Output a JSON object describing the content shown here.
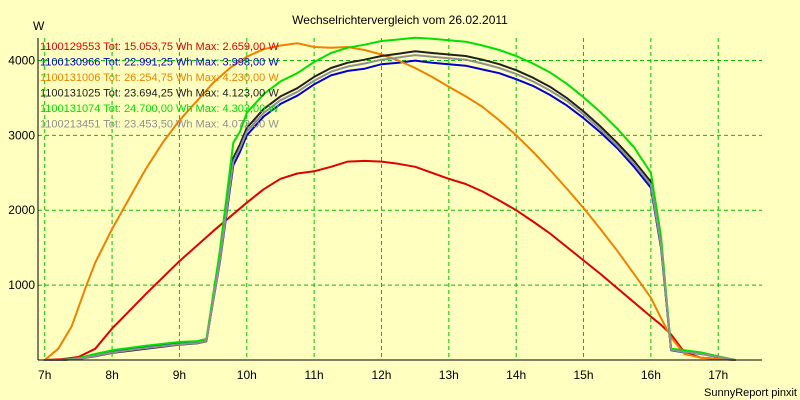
{
  "chart_data": {
    "type": "line",
    "title": "Wechselrichtervergleich vom 26.02.2011",
    "ylabel": "W",
    "xlabel": "",
    "footer": "SunnyReport pinxit",
    "xlim": [
      6.9,
      17.65
    ],
    "ylim": [
      0,
      4300
    ],
    "x_ticks": [
      7,
      8,
      9,
      10,
      11,
      12,
      13,
      14,
      15,
      16,
      17
    ],
    "x_tick_labels": [
      "7h",
      "8h",
      "9h",
      "10h",
      "11h",
      "12h",
      "13h",
      "14h",
      "15h",
      "16h",
      "17h"
    ],
    "y_ticks": [
      1000,
      2000,
      3000,
      4000
    ],
    "y_tick_labels": [
      "1000",
      "2000",
      "3000",
      "4000"
    ],
    "grid": true,
    "legend_position": "top-left",
    "series": [
      {
        "name": "1100129553",
        "legend": "1100129553 Tot: 15.053,75 Wh Max: 2.659,00 W",
        "color": "#e00000",
        "x": [
          7.0,
          7.25,
          7.5,
          7.75,
          8.0,
          8.5,
          9.0,
          9.5,
          10.0,
          10.25,
          10.5,
          10.75,
          11.0,
          11.25,
          11.5,
          11.75,
          12.0,
          12.25,
          12.5,
          12.75,
          13.0,
          13.25,
          13.5,
          13.75,
          14.0,
          14.25,
          14.5,
          14.75,
          15.0,
          15.25,
          15.5,
          15.75,
          16.0,
          16.15,
          16.3,
          16.5,
          16.75,
          17.0,
          17.25
        ],
        "y": [
          0,
          10,
          40,
          150,
          420,
          880,
          1320,
          1720,
          2100,
          2280,
          2420,
          2490,
          2520,
          2580,
          2650,
          2659,
          2650,
          2620,
          2580,
          2500,
          2420,
          2350,
          2250,
          2130,
          2000,
          1850,
          1690,
          1510,
          1330,
          1150,
          960,
          770,
          580,
          470,
          340,
          100,
          30,
          15,
          0
        ]
      },
      {
        "name": "1100130966",
        "legend": "1100130966 Tot: 22.991,25 Wh Max: 3.998,00 W",
        "color": "#0000d0",
        "x": [
          7.0,
          7.25,
          7.5,
          7.75,
          8.0,
          8.5,
          9.0,
          9.25,
          9.4,
          9.6,
          9.8,
          9.9,
          10.0,
          10.25,
          10.5,
          10.75,
          11.0,
          11.25,
          11.5,
          11.75,
          12.0,
          12.25,
          12.5,
          12.75,
          13.0,
          13.25,
          13.5,
          13.75,
          14.0,
          14.25,
          14.5,
          14.75,
          15.0,
          15.25,
          15.5,
          15.75,
          16.0,
          16.15,
          16.3,
          16.5,
          16.75,
          17.0,
          17.25
        ],
        "y": [
          0,
          0,
          20,
          60,
          110,
          170,
          220,
          230,
          260,
          1300,
          2600,
          2780,
          3000,
          3250,
          3420,
          3530,
          3680,
          3800,
          3860,
          3890,
          3950,
          3970,
          3998,
          3970,
          3950,
          3930,
          3880,
          3830,
          3750,
          3660,
          3540,
          3400,
          3230,
          3040,
          2830,
          2580,
          2300,
          1500,
          130,
          100,
          80,
          40,
          0
        ]
      },
      {
        "name": "1100131006",
        "legend": "1100131006 Tot: 26.254,75 Wh Max: 4.230,00 W",
        "color": "#f08000",
        "x": [
          7.0,
          7.2,
          7.4,
          7.6,
          7.75,
          8.0,
          8.25,
          8.5,
          8.75,
          9.0,
          9.25,
          9.5,
          9.75,
          10.0,
          10.25,
          10.5,
          10.75,
          11.0,
          11.25,
          11.5,
          11.75,
          12.0,
          12.25,
          12.5,
          12.75,
          13.0,
          13.25,
          13.5,
          13.75,
          14.0,
          14.25,
          14.5,
          14.75,
          15.0,
          15.25,
          15.5,
          15.75,
          16.0,
          16.15,
          16.3,
          16.5,
          16.75,
          17.0,
          17.25
        ],
        "y": [
          0,
          150,
          450,
          950,
          1300,
          1750,
          2150,
          2550,
          2900,
          3200,
          3450,
          3700,
          3900,
          4050,
          4150,
          4200,
          4230,
          4180,
          4170,
          4180,
          4140,
          4080,
          4000,
          3900,
          3780,
          3650,
          3520,
          3380,
          3200,
          3000,
          2780,
          2540,
          2290,
          2030,
          1750,
          1460,
          1150,
          830,
          560,
          300,
          80,
          30,
          15,
          0
        ]
      },
      {
        "name": "1100131025",
        "legend": "1100131025 Tot: 23.694,25 Wh Max: 4.123,00 W",
        "color": "#202020",
        "x": [
          7.0,
          7.25,
          7.5,
          7.75,
          8.0,
          8.5,
          9.0,
          9.25,
          9.4,
          9.6,
          9.8,
          9.9,
          10.0,
          10.25,
          10.5,
          10.75,
          11.0,
          11.25,
          11.5,
          11.75,
          12.0,
          12.25,
          12.5,
          12.75,
          13.0,
          13.25,
          13.5,
          13.75,
          14.0,
          14.25,
          14.5,
          14.75,
          15.0,
          15.25,
          15.5,
          15.75,
          16.0,
          16.15,
          16.3,
          16.5,
          16.75,
          17.0,
          17.25
        ],
        "y": [
          0,
          0,
          15,
          50,
          95,
          150,
          205,
          220,
          250,
          1350,
          2700,
          2880,
          3100,
          3350,
          3520,
          3630,
          3780,
          3900,
          3970,
          4010,
          4060,
          4090,
          4123,
          4100,
          4080,
          4060,
          4010,
          3950,
          3870,
          3770,
          3650,
          3500,
          3320,
          3120,
          2900,
          2660,
          2380,
          1550,
          140,
          110,
          85,
          45,
          0
        ]
      },
      {
        "name": "1100131074",
        "legend": "1100131074 Tot: 24.700,00 Wh Max: 4.303,00 W",
        "color": "#00e000",
        "x": [
          7.0,
          7.25,
          7.5,
          7.75,
          8.0,
          8.5,
          9.0,
          9.25,
          9.4,
          9.6,
          9.8,
          9.9,
          10.0,
          10.25,
          10.5,
          10.75,
          11.0,
          11.25,
          11.5,
          11.75,
          12.0,
          12.25,
          12.5,
          12.75,
          13.0,
          13.25,
          13.5,
          13.75,
          14.0,
          14.25,
          14.5,
          14.75,
          15.0,
          15.25,
          15.5,
          15.75,
          16.0,
          16.15,
          16.3,
          16.5,
          16.75,
          17.0,
          17.25
        ],
        "y": [
          0,
          0,
          25,
          80,
          130,
          190,
          240,
          250,
          280,
          1450,
          2900,
          3050,
          3300,
          3550,
          3720,
          3830,
          3980,
          4100,
          4170,
          4210,
          4260,
          4280,
          4303,
          4290,
          4270,
          4250,
          4200,
          4140,
          4060,
          3960,
          3840,
          3690,
          3510,
          3310,
          3090,
          2840,
          2500,
          1650,
          150,
          130,
          100,
          50,
          0
        ]
      },
      {
        "name": "1100213451",
        "legend": "1100213451 Tot: 23.453,50 Wh Max: 4.072,00 W",
        "color": "#909090",
        "x": [
          7.0,
          7.25,
          7.5,
          7.75,
          8.0,
          8.5,
          9.0,
          9.25,
          9.4,
          9.6,
          9.8,
          9.9,
          10.0,
          10.25,
          10.5,
          10.75,
          11.0,
          11.25,
          11.5,
          11.75,
          12.0,
          12.25,
          12.5,
          12.75,
          13.0,
          13.25,
          13.5,
          13.75,
          14.0,
          14.25,
          14.5,
          14.75,
          15.0,
          15.25,
          15.5,
          15.75,
          16.0,
          16.15,
          16.3,
          16.5,
          16.75,
          17.0,
          17.25
        ],
        "y": [
          0,
          0,
          15,
          55,
          100,
          160,
          210,
          225,
          255,
          1320,
          2650,
          2830,
          3050,
          3300,
          3470,
          3580,
          3730,
          3850,
          3920,
          3960,
          4010,
          4040,
          4072,
          4050,
          4030,
          4010,
          3960,
          3900,
          3820,
          3720,
          3600,
          3460,
          3280,
          3080,
          2860,
          2620,
          2340,
          1530,
          135,
          105,
          80,
          42,
          0
        ]
      }
    ]
  }
}
